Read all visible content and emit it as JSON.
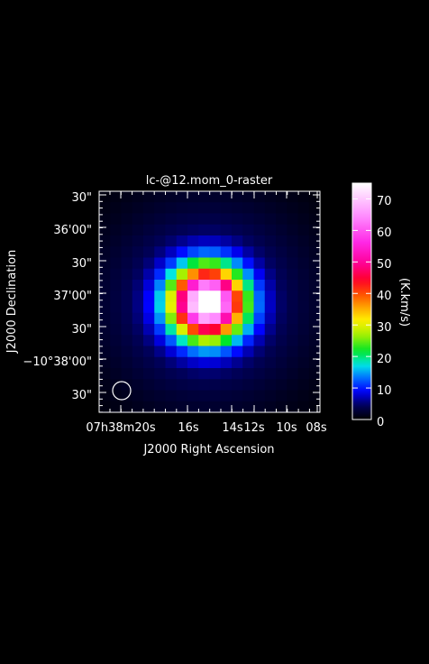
{
  "chart_data": {
    "type": "heatmap",
    "title": "lc-@12.mom_0-raster",
    "xlabel": "J2000 Right Ascension",
    "ylabel": "J2000 Declination",
    "x_tick_labels": [
      "07h38m20s",
      "16s",
      "14s",
      "12s",
      "10s",
      "08s"
    ],
    "y_tick_labels": [
      "30\"",
      "36'00\"",
      "30\"",
      "37'00\"",
      "30\"",
      "−10°38'00\"",
      "30\""
    ],
    "colorbar": {
      "label": "(K.km/s)",
      "range": [
        0,
        75
      ],
      "ticks": [
        "0",
        "10",
        "20",
        "30",
        "40",
        "50",
        "60",
        "70"
      ]
    },
    "colorscale": "rainbow: black-blue-cyan-green-yellow-orange-red-magenta-white",
    "grid_size": [
      20,
      20
    ],
    "peak_value": 75,
    "peak_cell": [
      9.8,
      10.1
    ],
    "beam": "circle, lower-left"
  }
}
